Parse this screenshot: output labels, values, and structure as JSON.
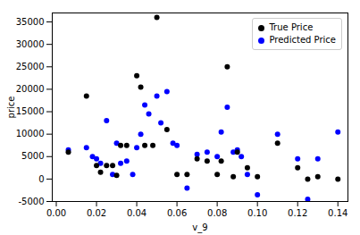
{
  "chart_data": {
    "type": "scatter",
    "xlabel": "v_9",
    "ylabel": "price",
    "xlim": [
      -0.002,
      0.145
    ],
    "ylim": [
      -5000,
      37000
    ],
    "xticks": [
      {
        "value": 0.0,
        "label": "0.00"
      },
      {
        "value": 0.02,
        "label": "0.02"
      },
      {
        "value": 0.04,
        "label": "0.04"
      },
      {
        "value": 0.06,
        "label": "0.06"
      },
      {
        "value": 0.08,
        "label": "0.08"
      },
      {
        "value": 0.1,
        "label": "0.10"
      },
      {
        "value": 0.12,
        "label": "0.12"
      },
      {
        "value": 0.14,
        "label": "0.14"
      }
    ],
    "yticks": [
      -5000,
      0,
      5000,
      10000,
      15000,
      20000,
      25000,
      30000,
      35000
    ],
    "grid": false,
    "legend": "upper right",
    "series": [
      {
        "name": "True Price",
        "color": "black",
        "marker": "circle",
        "x": [
          0.006,
          0.015,
          0.02,
          0.022,
          0.025,
          0.028,
          0.03,
          0.032,
          0.035,
          0.04,
          0.042,
          0.044,
          0.048,
          0.05,
          0.055,
          0.06,
          0.065,
          0.07,
          0.075,
          0.08,
          0.082,
          0.085,
          0.088,
          0.09,
          0.095,
          0.1,
          0.11,
          0.12,
          0.125,
          0.13,
          0.14
        ],
        "y": [
          6000,
          18500,
          3000,
          1500,
          3000,
          3000,
          800,
          7500,
          7500,
          23000,
          20500,
          7500,
          7500,
          36000,
          11000,
          1000,
          1000,
          4500,
          4000,
          1000,
          4000,
          25000,
          500,
          6000,
          2500,
          500,
          8000,
          2500,
          0,
          500,
          0
        ]
      },
      {
        "name": "Predicted Price",
        "color": "blue",
        "marker": "circle",
        "x": [
          0.006,
          0.015,
          0.018,
          0.02,
          0.022,
          0.025,
          0.028,
          0.03,
          0.032,
          0.035,
          0.038,
          0.04,
          0.042,
          0.044,
          0.046,
          0.05,
          0.052,
          0.055,
          0.058,
          0.06,
          0.065,
          0.07,
          0.075,
          0.08,
          0.082,
          0.085,
          0.088,
          0.09,
          0.092,
          0.095,
          0.1,
          0.11,
          0.12,
          0.125,
          0.13,
          0.14
        ],
        "y": [
          6500,
          7000,
          5000,
          4500,
          3500,
          13000,
          1000,
          8000,
          3500,
          4000,
          1000,
          7000,
          10000,
          16500,
          14500,
          18500,
          12500,
          19500,
          8000,
          7500,
          -2000,
          5500,
          6000,
          5000,
          10500,
          16000,
          6000,
          6500,
          5000,
          1000,
          -3500,
          10000,
          4500,
          -4500,
          4500,
          10500
        ]
      }
    ]
  }
}
